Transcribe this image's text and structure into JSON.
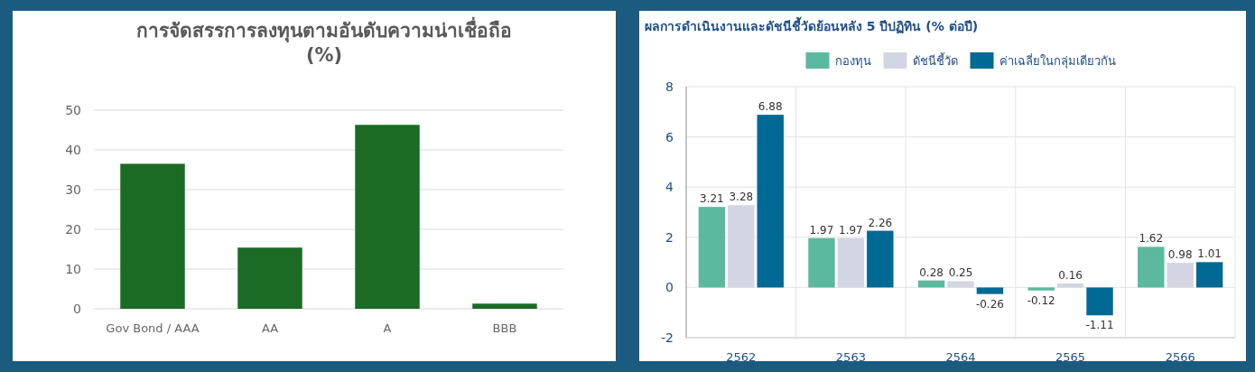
{
  "chart_data": [
    {
      "type": "bar",
      "title": "การจัดสรรการลงทุนตามอันดับความน่าเชื่อถือ (%)",
      "categories": [
        "Gov Bond / AAA",
        "AA",
        "A",
        "BBB"
      ],
      "values": [
        36.5,
        15.4,
        46.3,
        1.3
      ],
      "color": "#1b6b25",
      "ylim": [
        0,
        50
      ],
      "yticks": [
        0,
        10,
        20,
        30,
        40,
        50
      ],
      "grid": "y"
    },
    {
      "type": "bar",
      "title": "ผลการดำเนินงานและดัชนีชี้วัดย้อนหลัง 5 ปีปฏิทิน (% ต่อปี)",
      "categories": [
        "2562",
        "2563",
        "2564",
        "2565",
        "2566"
      ],
      "series": [
        {
          "name": "กองทุน",
          "color": "#5bb9a0",
          "values": [
            3.21,
            1.97,
            0.28,
            -0.12,
            1.62
          ]
        },
        {
          "name": "ดัชนีชี้วัด",
          "color": "#d3d6e2",
          "values": [
            3.28,
            1.97,
            0.25,
            0.16,
            0.98
          ]
        },
        {
          "name": "ค่าเฉลี่ยในกลุ่มเดียวกัน",
          "color": "#006994",
          "values": [
            6.88,
            2.26,
            -0.26,
            -1.11,
            1.01
          ]
        }
      ],
      "ylim": [
        -2,
        8
      ],
      "yticks": [
        -2,
        0,
        2,
        4,
        6,
        8
      ],
      "grid": true,
      "legend": "top",
      "data_labels": true
    }
  ]
}
